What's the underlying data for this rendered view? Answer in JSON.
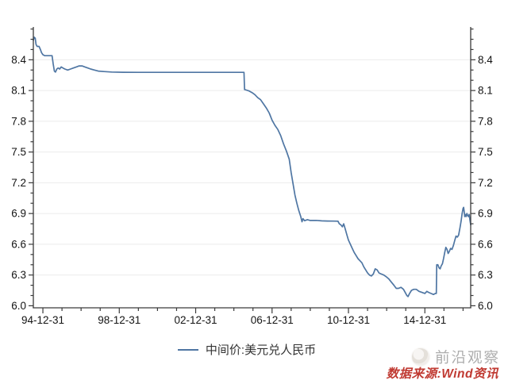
{
  "footer": {
    "brand": "前沿观察",
    "source": "数据来源:Wind资讯"
  },
  "colors": {
    "line": "#4f76a3",
    "axis": "#3a3a3a",
    "grid": "#ebebeb",
    "tick_label": "#141414",
    "legend_text": "#333333",
    "brand_text": "#a5a5a5",
    "source_text": "#c03a32"
  },
  "chart_data": {
    "type": "line",
    "title": "",
    "xlabel": "",
    "ylabel": "",
    "legend": [
      "中间价:美元兑人民币"
    ],
    "legend_position": "bottom-center",
    "grid": {
      "horizontal": true,
      "vertical": false
    },
    "xlim": [
      1994.5,
      2017.4
    ],
    "ylim": [
      5.98,
      8.72
    ],
    "y_ticks": [
      {
        "v": 6.0,
        "label": "6.0"
      },
      {
        "v": 6.3,
        "label": "6.3"
      },
      {
        "v": 6.6,
        "label": "6.6"
      },
      {
        "v": 6.9,
        "label": "6.9"
      },
      {
        "v": 7.2,
        "label": "7.2"
      },
      {
        "v": 7.5,
        "label": "7.5"
      },
      {
        "v": 7.8,
        "label": "7.8"
      },
      {
        "v": 8.1,
        "label": "8.1"
      },
      {
        "v": 8.4,
        "label": "8.4"
      }
    ],
    "y_minor": {
      "from": 6.0,
      "to": 8.7,
      "step": 0.1
    },
    "x_ticks": [
      {
        "year": 1995,
        "label": "94-12-31"
      },
      {
        "year": 1999,
        "label": "98-12-31"
      },
      {
        "year": 2003,
        "label": "02-12-31"
      },
      {
        "year": 2007,
        "label": "06-12-31"
      },
      {
        "year": 2011,
        "label": "10-12-31"
      },
      {
        "year": 2015,
        "label": "14-12-31"
      }
    ],
    "x_minor": {
      "from": 1995,
      "to": 2017,
      "step": 1
    },
    "series": [
      {
        "name": "中间价:美元兑人民币",
        "points": [
          [
            1994.5,
            8.59
          ],
          [
            1994.55,
            8.62
          ],
          [
            1994.6,
            8.61
          ],
          [
            1994.64,
            8.55
          ],
          [
            1994.7,
            8.53
          ],
          [
            1994.8,
            8.53
          ],
          [
            1994.87,
            8.5
          ],
          [
            1994.93,
            8.47
          ],
          [
            1995.0,
            8.45
          ],
          [
            1995.1,
            8.44
          ],
          [
            1995.3,
            8.44
          ],
          [
            1995.48,
            8.44
          ],
          [
            1995.54,
            8.36
          ],
          [
            1995.6,
            8.29
          ],
          [
            1995.66,
            8.28
          ],
          [
            1995.73,
            8.31
          ],
          [
            1995.8,
            8.32
          ],
          [
            1995.88,
            8.31
          ],
          [
            1995.96,
            8.33
          ],
          [
            1996.05,
            8.32
          ],
          [
            1996.15,
            8.31
          ],
          [
            1996.3,
            8.3
          ],
          [
            1996.45,
            8.31
          ],
          [
            1996.6,
            8.32
          ],
          [
            1996.75,
            8.33
          ],
          [
            1996.9,
            8.34
          ],
          [
            1997.05,
            8.34
          ],
          [
            1997.2,
            8.33
          ],
          [
            1997.35,
            8.32
          ],
          [
            1997.5,
            8.31
          ],
          [
            1997.7,
            8.3
          ],
          [
            1997.9,
            8.29
          ],
          [
            1998.2,
            8.285
          ],
          [
            1998.6,
            8.28
          ],
          [
            1999.2,
            8.278
          ],
          [
            2000.0,
            8.277
          ],
          [
            2001.0,
            8.277
          ],
          [
            2002.0,
            8.277
          ],
          [
            2003.0,
            8.277
          ],
          [
            2004.0,
            8.277
          ],
          [
            2005.0,
            8.277
          ],
          [
            2005.53,
            8.277
          ],
          [
            2005.56,
            8.11
          ],
          [
            2005.65,
            8.105
          ],
          [
            2005.8,
            8.095
          ],
          [
            2005.95,
            8.08
          ],
          [
            2006.1,
            8.06
          ],
          [
            2006.25,
            8.03
          ],
          [
            2006.4,
            8.01
          ],
          [
            2006.55,
            7.97
          ],
          [
            2006.7,
            7.93
          ],
          [
            2006.85,
            7.88
          ],
          [
            2007.0,
            7.81
          ],
          [
            2007.15,
            7.76
          ],
          [
            2007.3,
            7.72
          ],
          [
            2007.45,
            7.66
          ],
          [
            2007.6,
            7.58
          ],
          [
            2007.75,
            7.51
          ],
          [
            2007.9,
            7.43
          ],
          [
            2008.0,
            7.3
          ],
          [
            2008.1,
            7.19
          ],
          [
            2008.2,
            7.08
          ],
          [
            2008.3,
            7.0
          ],
          [
            2008.4,
            6.93
          ],
          [
            2008.5,
            6.87
          ],
          [
            2008.57,
            6.82
          ],
          [
            2008.62,
            6.85
          ],
          [
            2008.7,
            6.83
          ],
          [
            2008.85,
            6.84
          ],
          [
            2009.0,
            6.832
          ],
          [
            2009.3,
            6.833
          ],
          [
            2009.6,
            6.828
          ],
          [
            2009.9,
            6.827
          ],
          [
            2010.2,
            6.826
          ],
          [
            2010.45,
            6.825
          ],
          [
            2010.52,
            6.8
          ],
          [
            2010.6,
            6.79
          ],
          [
            2010.68,
            6.77
          ],
          [
            2010.75,
            6.8
          ],
          [
            2010.83,
            6.75
          ],
          [
            2010.92,
            6.69
          ],
          [
            2011.0,
            6.64
          ],
          [
            2011.1,
            6.6
          ],
          [
            2011.2,
            6.56
          ],
          [
            2011.3,
            6.52
          ],
          [
            2011.4,
            6.49
          ],
          [
            2011.5,
            6.46
          ],
          [
            2011.6,
            6.44
          ],
          [
            2011.7,
            6.42
          ],
          [
            2011.8,
            6.38
          ],
          [
            2011.9,
            6.35
          ],
          [
            2012.0,
            6.32
          ],
          [
            2012.1,
            6.3
          ],
          [
            2012.2,
            6.29
          ],
          [
            2012.3,
            6.31
          ],
          [
            2012.4,
            6.36
          ],
          [
            2012.5,
            6.35
          ],
          [
            2012.6,
            6.32
          ],
          [
            2012.72,
            6.31
          ],
          [
            2012.85,
            6.3
          ],
          [
            2013.0,
            6.28
          ],
          [
            2013.12,
            6.26
          ],
          [
            2013.25,
            6.23
          ],
          [
            2013.38,
            6.2
          ],
          [
            2013.5,
            6.17
          ],
          [
            2013.62,
            6.17
          ],
          [
            2013.75,
            6.18
          ],
          [
            2013.88,
            6.16
          ],
          [
            2014.0,
            6.12
          ],
          [
            2014.06,
            6.1
          ],
          [
            2014.12,
            6.09
          ],
          [
            2014.2,
            6.12
          ],
          [
            2014.3,
            6.15
          ],
          [
            2014.42,
            6.16
          ],
          [
            2014.55,
            6.16
          ],
          [
            2014.7,
            6.14
          ],
          [
            2014.85,
            6.13
          ],
          [
            2015.0,
            6.12
          ],
          [
            2015.1,
            6.14
          ],
          [
            2015.2,
            6.13
          ],
          [
            2015.32,
            6.12
          ],
          [
            2015.45,
            6.11
          ],
          [
            2015.55,
            6.12
          ],
          [
            2015.6,
            6.12
          ],
          [
            2015.62,
            6.4
          ],
          [
            2015.68,
            6.4
          ],
          [
            2015.74,
            6.37
          ],
          [
            2015.8,
            6.36
          ],
          [
            2015.86,
            6.39
          ],
          [
            2015.92,
            6.41
          ],
          [
            2015.98,
            6.46
          ],
          [
            2016.04,
            6.52
          ],
          [
            2016.1,
            6.57
          ],
          [
            2016.16,
            6.55
          ],
          [
            2016.22,
            6.51
          ],
          [
            2016.28,
            6.53
          ],
          [
            2016.35,
            6.56
          ],
          [
            2016.42,
            6.55
          ],
          [
            2016.5,
            6.59
          ],
          [
            2016.57,
            6.64
          ],
          [
            2016.63,
            6.68
          ],
          [
            2016.7,
            6.67
          ],
          [
            2016.77,
            6.69
          ],
          [
            2016.84,
            6.76
          ],
          [
            2016.9,
            6.83
          ],
          [
            2016.95,
            6.9
          ],
          [
            2017.0,
            6.95
          ],
          [
            2017.03,
            6.96
          ],
          [
            2017.06,
            6.92
          ],
          [
            2017.09,
            6.87
          ],
          [
            2017.12,
            6.89
          ],
          [
            2017.16,
            6.87
          ],
          [
            2017.2,
            6.9
          ],
          [
            2017.24,
            6.88
          ],
          [
            2017.28,
            6.87
          ],
          [
            2017.32,
            6.89
          ],
          [
            2017.36,
            6.84
          ],
          [
            2017.4,
            6.79
          ]
        ]
      }
    ]
  }
}
